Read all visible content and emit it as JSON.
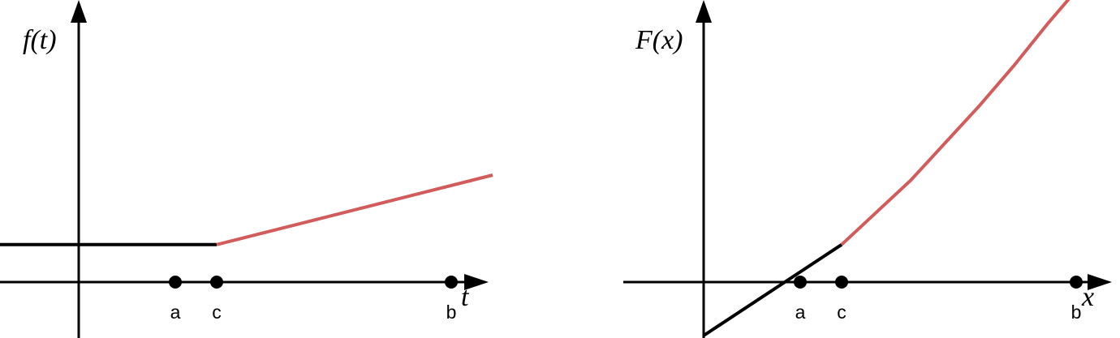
{
  "colors": {
    "axis": "#000000",
    "before": "#000000",
    "after": "#d25b5b"
  },
  "chart_data": [
    {
      "type": "line",
      "ylabel": "f(t)",
      "xlabel": "t",
      "xlim": [
        -1.2,
        6.0
      ],
      "ylim": [
        -1.0,
        5.3
      ],
      "points": [
        {
          "label": "a",
          "x": 1.4
        },
        {
          "label": "c",
          "x": 2.0
        },
        {
          "label": "b",
          "x": 5.4
        }
      ],
      "series": [
        {
          "segment": "before",
          "x": [
            -1.2,
            2.0
          ],
          "y": [
            0.7,
            0.7
          ]
        },
        {
          "segment": "after",
          "x": [
            2.0,
            6.0
          ],
          "y": [
            0.7,
            2.0
          ]
        }
      ]
    },
    {
      "type": "line",
      "ylabel": "F(x)",
      "xlabel": "x",
      "xlim": [
        -1.2,
        6.0
      ],
      "ylim": [
        -1.0,
        5.3
      ],
      "points": [
        {
          "label": "a",
          "x": 1.4
        },
        {
          "label": "c",
          "x": 2.0
        },
        {
          "label": "b",
          "x": 5.4
        }
      ],
      "series": [
        {
          "segment": "before",
          "x": [
            0.0,
            2.0
          ],
          "y": [
            -1.0,
            0.7
          ]
        },
        {
          "segment": "after",
          "x": [
            2.0,
            2.5,
            3.0,
            3.5,
            4.0,
            4.5,
            5.0,
            5.5
          ],
          "y": [
            0.7,
            1.3,
            1.9,
            2.6,
            3.3,
            4.05,
            4.85,
            5.6
          ]
        }
      ]
    }
  ]
}
